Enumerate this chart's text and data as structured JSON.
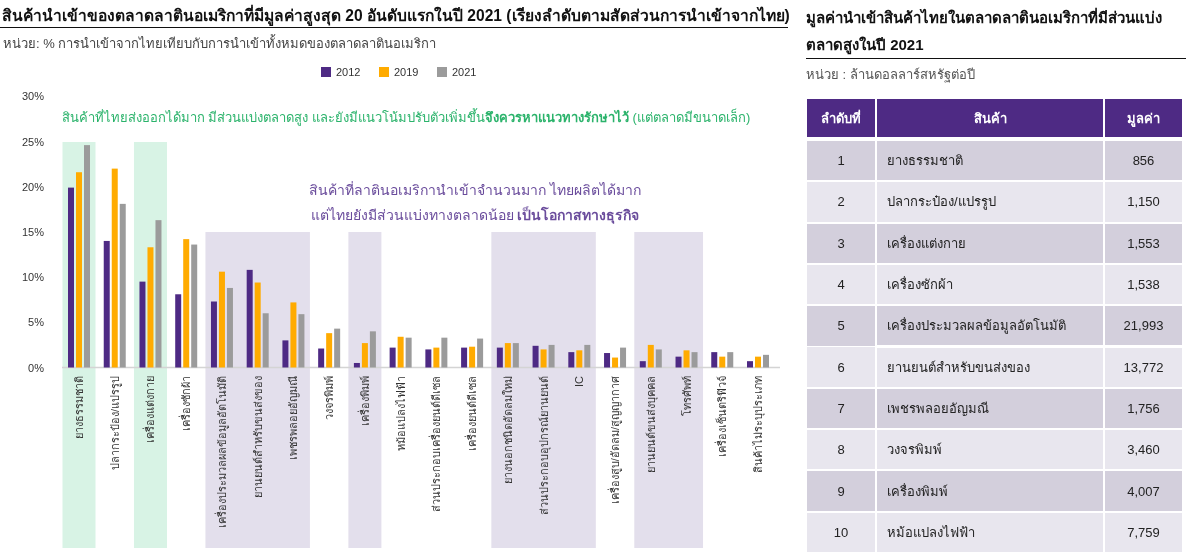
{
  "chart_data": [
    {
      "type": "bar",
      "title": "สินค้านำเข้าของตลาดลาตินอเมริกาที่มีมูลค่าสูงสุด 20 อันดับแรกในปี 2021 (เรียงลำดับตามสัดส่วนการนำเข้าจากไทย)",
      "subtitle": "หน่วย: % การนำเข้าจากไทยเทียบกับการนำเข้าทั้งหมดของตลาดลาตินอเมริกา",
      "categories": [
        "ยางธรรมชาติ",
        "ปลากระป๋อง/แปรรูป",
        "เครื่องแต่งกาย",
        "เครื่องซักผ้า",
        "เครื่องประมวลผลข้อมูลอัตโนมัติ",
        "ยานยนต์สำหรับขนส่งของ",
        "เพชรพลอยอัญมณี",
        "วงจรพิมพ์",
        "เครื่องพิมพ์",
        "หม้อแปลงไฟฟ้า",
        "ส่วนประกอบเครื่องยนต์ดีเซล",
        "เครื่องยนต์ดีเซล",
        "ยางนอกชนิดอัดลมใหม่",
        "ส่วนประกอบอุปกรณ์ยานยนต์",
        "IC",
        "เครื่องสูบ/อัดลม/สูญญากาศ",
        "ยานยนต์ขนส่งบุคคล",
        "โทรศัพท์",
        "เครื่องเซ็นตริฟิวจ์",
        "สินค้าไม่ระบุประเภท"
      ],
      "series": [
        {
          "name": "2012",
          "color": "#4e2a84",
          "values": [
            19.9,
            14.0,
            9.5,
            8.1,
            7.3,
            10.8,
            3.0,
            2.1,
            0.5,
            2.2,
            2.0,
            2.2,
            2.2,
            2.4,
            1.7,
            1.6,
            0.7,
            1.2,
            1.7,
            0.7
          ]
        },
        {
          "name": "2019",
          "color": "#ffab00",
          "values": [
            21.6,
            22.0,
            13.3,
            14.2,
            10.6,
            9.4,
            7.2,
            3.8,
            2.7,
            3.4,
            2.2,
            2.3,
            2.7,
            2.0,
            1.9,
            1.1,
            2.5,
            1.9,
            1.2,
            1.2
          ]
        },
        {
          "name": "2021",
          "color": "#9b9b9b",
          "values": [
            24.6,
            18.1,
            16.3,
            13.6,
            8.8,
            6.0,
            5.9,
            4.3,
            4.0,
            3.3,
            3.3,
            3.2,
            2.7,
            2.5,
            2.5,
            2.2,
            2.0,
            1.7,
            1.7,
            1.4
          ]
        }
      ],
      "ylim": [
        0,
        30
      ],
      "yticks": [
        {
          "value": 0,
          "label": "0%"
        },
        {
          "value": 5,
          "label": "5%"
        },
        {
          "value": 10,
          "label": "10%"
        },
        {
          "value": 15,
          "label": "15%"
        },
        {
          "value": 20,
          "label": "20%"
        },
        {
          "value": 25,
          "label": "25%"
        },
        {
          "value": 30,
          "label": "30%"
        }
      ],
      "legend": "top",
      "bands": [
        {
          "axis": "x",
          "from": "ยางธรรมชาติ",
          "to": "ยางธรรมชาติ",
          "color": "#d8f3e5"
        },
        {
          "axis": "x",
          "from": "เครื่องแต่งกาย",
          "to": "เครื่องแต่งกาย",
          "color": "#d8f3e5"
        },
        {
          "axis": "x",
          "from": "เครื่องประมวลผลข้อมูลอัตโนมัติ",
          "to": "เพชรพลอยอัญมณี",
          "color": "#e3dfec"
        },
        {
          "axis": "x",
          "from": "เครื่องพิมพ์",
          "to": "เครื่องพิมพ์",
          "color": "#e3dfec"
        },
        {
          "axis": "x",
          "from": "ยางนอกชนิดอัดลมใหม่",
          "to": "IC",
          "color": "#e3dfec"
        },
        {
          "axis": "x",
          "from": "ยานยนต์ขนส่งบุคคล",
          "to": "โทรศัพท์",
          "color": "#e3dfec"
        }
      ],
      "annotations": [
        "สินค้าที่ไทยส่งออกได้มาก มีส่วนแบ่งตลาดสูง และยังมีแนวโน้มปรับตัวเพิ่มขึ้น**จึงควรหาแนวทางรักษาไว้** (แต่ตลาดมีขนาดเล็ก)",
        "สินค้าที่ลาตินอเมริกานำเข้าจำนวนมาก ไทยผลิตได้มาก แต่ไทยยังมีส่วนแบ่งทางตลาดน้อย **เป็นโอกาสทางธุรกิจ**"
      ]
    },
    {
      "type": "heatmap",
      "title": "มูลค่านำเข้าสินค้าไทยในตลาดลาตินอเมริกาที่มีส่วนแบ่งตลาดสูงในปี 2021",
      "subtitle": "หน่วย : ล้านดอลลาร์สหรัฐต่อปี",
      "ylabel": "ลำดับที่",
      "categories": [
        "สินค้า",
        "มูลค่า"
      ],
      "y_categories": [
        "1",
        "2",
        "3",
        "4",
        "5",
        "6",
        "7",
        "8",
        "9",
        "10"
      ],
      "cells": [
        [
          null,
          856
        ],
        [
          null,
          1150
        ],
        [
          null,
          1553
        ],
        [
          null,
          1538
        ],
        [
          null,
          21993
        ],
        [
          null,
          13772
        ],
        [
          null,
          1756
        ],
        [
          null,
          3460
        ],
        [
          null,
          4007
        ],
        [
          null,
          7759
        ]
      ],
      "cell_labels": [
        [
          "ยางธรรมชาติ",
          "856"
        ],
        [
          "ปลากระป๋อง/แปรรูป",
          "1,150"
        ],
        [
          "เครื่องแต่งกาย",
          "1,553"
        ],
        [
          "เครื่องซักผ้า",
          "1,538"
        ],
        [
          "เครื่องประมวลผลข้อมูลอัตโนมัติ",
          "21,993"
        ],
        [
          "ยานยนต์สำหรับขนส่งของ",
          "13,772"
        ],
        [
          "เพชรพลอยอัญมณี",
          "1,756"
        ],
        [
          "วงจรพิมพ์",
          "3,460"
        ],
        [
          "เครื่องพิมพ์",
          "4,007"
        ],
        [
          "หม้อแปลงไฟฟ้า",
          "7,759"
        ]
      ]
    }
  ]
}
